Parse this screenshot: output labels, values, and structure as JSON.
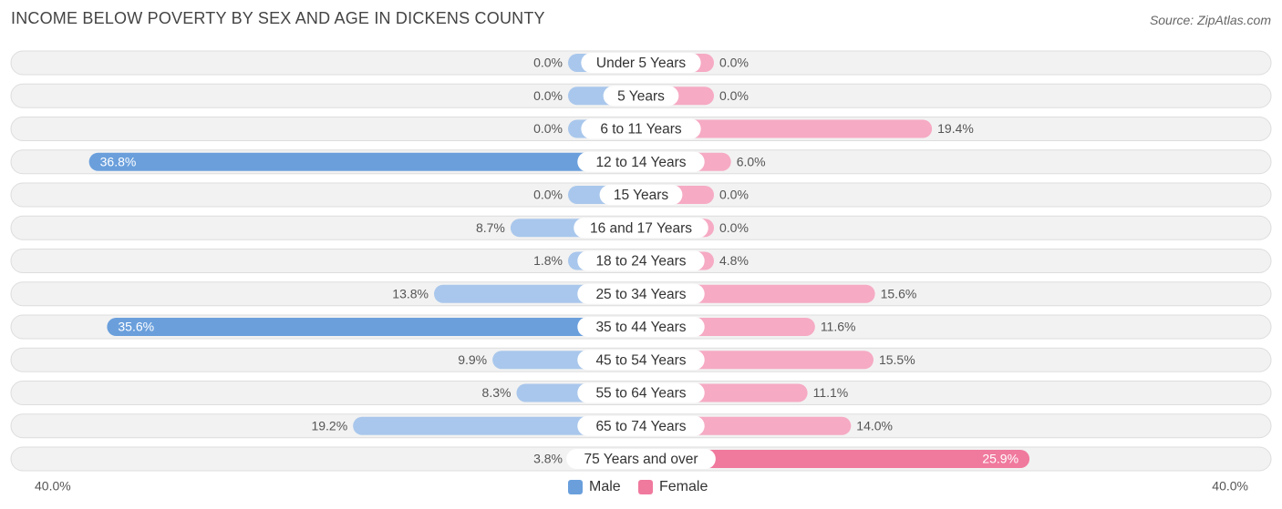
{
  "title": "INCOME BELOW POVERTY BY SEX AND AGE IN DICKENS COUNTY",
  "source": "Source: ZipAtlas.com",
  "colors": {
    "male_strong": "#6a9fdc",
    "male_light": "#a9c7ec",
    "female_strong": "#f0799e",
    "female_light": "#f6aac3",
    "row_bg": "#f2f2f2",
    "row_border": "#dddddd"
  },
  "chart_data": {
    "type": "bar",
    "orientation": "horizontal-diverging",
    "title": "INCOME BELOW POVERTY BY SEX AND AGE IN DICKENS COUNTY",
    "categories": [
      "Under 5 Years",
      "5 Years",
      "6 to 11 Years",
      "12 to 14 Years",
      "15 Years",
      "16 and 17 Years",
      "18 to 24 Years",
      "25 to 34 Years",
      "35 to 44 Years",
      "45 to 54 Years",
      "55 to 64 Years",
      "65 to 74 Years",
      "75 Years and over"
    ],
    "series": [
      {
        "name": "Male",
        "values": [
          0.0,
          0.0,
          0.0,
          36.8,
          0.0,
          8.7,
          1.8,
          13.8,
          35.6,
          9.9,
          8.3,
          19.2,
          3.8
        ],
        "labels": [
          "0.0%",
          "0.0%",
          "0.0%",
          "36.8%",
          "0.0%",
          "8.7%",
          "1.8%",
          "13.8%",
          "35.6%",
          "9.9%",
          "8.3%",
          "19.2%",
          "3.8%"
        ]
      },
      {
        "name": "Female",
        "values": [
          0.0,
          0.0,
          19.4,
          6.0,
          0.0,
          0.0,
          4.8,
          15.6,
          11.6,
          15.5,
          11.1,
          14.0,
          25.9
        ],
        "labels": [
          "0.0%",
          "0.0%",
          "19.4%",
          "6.0%",
          "0.0%",
          "0.0%",
          "4.8%",
          "15.6%",
          "11.6%",
          "15.5%",
          "11.1%",
          "14.0%",
          "25.9%"
        ]
      }
    ],
    "xlim": [
      -40,
      40
    ],
    "axis_labels": {
      "left": "40.0%",
      "right": "40.0%"
    },
    "legend": [
      "Male",
      "Female"
    ],
    "legend_position": "bottom-center"
  }
}
